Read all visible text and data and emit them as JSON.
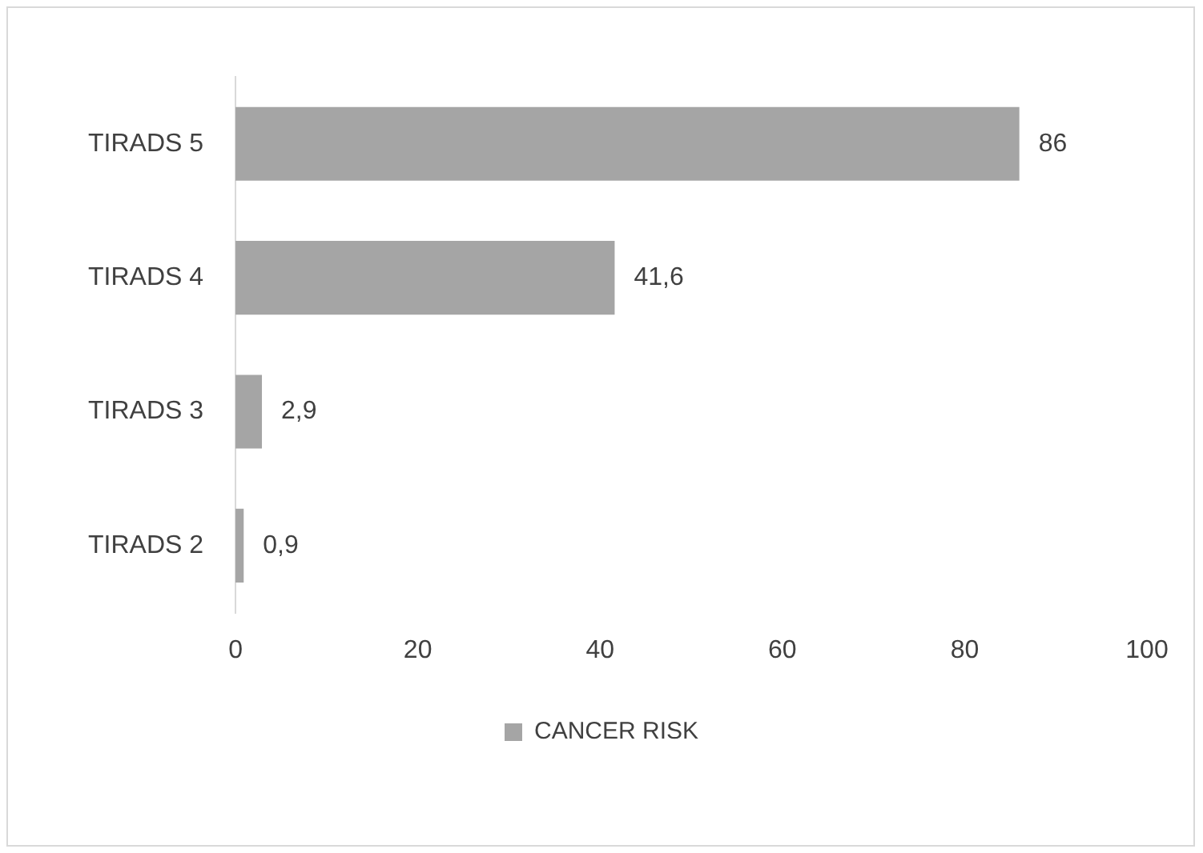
{
  "chart_data": {
    "type": "bar",
    "orientation": "horizontal",
    "categories": [
      "TIRADS 5",
      "TIRADS 4",
      "TIRADS 3",
      "TIRADS 2"
    ],
    "series": [
      {
        "name": "CANCER RISK",
        "color": "#a5a5a5",
        "values": [
          86,
          41.6,
          2.9,
          0.9
        ],
        "value_labels": [
          "86",
          "41,6",
          "2,9",
          "0,9"
        ]
      }
    ],
    "xlim": [
      0,
      100
    ],
    "xticks": [
      0,
      20,
      40,
      60,
      80,
      100
    ],
    "grid": false,
    "legend": "bottom"
  }
}
